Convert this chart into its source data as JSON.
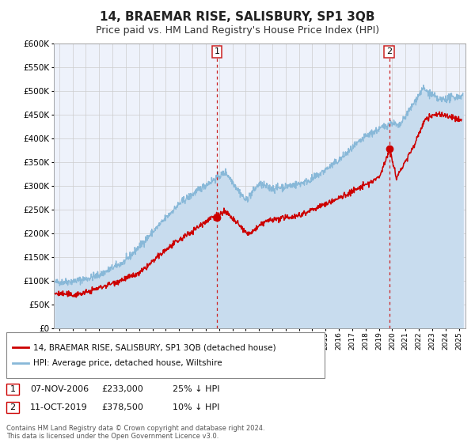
{
  "title": "14, BRAEMAR RISE, SALISBURY, SP1 3QB",
  "subtitle": "Price paid vs. HM Land Registry's House Price Index (HPI)",
  "legend_label_red": "14, BRAEMAR RISE, SALISBURY, SP1 3QB (detached house)",
  "legend_label_blue": "HPI: Average price, detached house, Wiltshire",
  "footer1": "Contains HM Land Registry data © Crown copyright and database right 2024.",
  "footer2": "This data is licensed under the Open Government Licence v3.0.",
  "ann1_label": "1",
  "ann1_date": "07-NOV-2006",
  "ann1_price": "£233,000",
  "ann1_pct": "25% ↓ HPI",
  "ann2_label": "2",
  "ann2_date": "11-OCT-2019",
  "ann2_price": "£378,500",
  "ann2_pct": "10% ↓ HPI",
  "ylim": [
    0,
    600000
  ],
  "xlim_start": 1994.6,
  "xlim_end": 2025.5,
  "yticks": [
    0,
    50000,
    100000,
    150000,
    200000,
    250000,
    300000,
    350000,
    400000,
    450000,
    500000,
    550000,
    600000
  ],
  "bg_color": "#eef2fb",
  "grid_color": "#cccccc",
  "red_color": "#cc0000",
  "blue_color": "#88b8d8",
  "blue_fill_color": "#c8dcee",
  "vline_color": "#cc2222",
  "sale1_x": 2006.85,
  "sale1_y": 233000,
  "sale2_x": 2019.78,
  "sale2_y": 378500,
  "title_fontsize": 11,
  "subtitle_fontsize": 9
}
